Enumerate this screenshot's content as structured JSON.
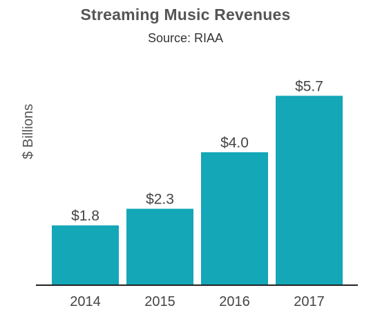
{
  "chart_data": {
    "type": "bar",
    "title": "Streaming Music Revenues",
    "subtitle": "Source: RIAA",
    "xlabel": "",
    "ylabel": "$ Billions",
    "categories": [
      "2014",
      "2015",
      "2016",
      "2017"
    ],
    "values": [
      1.8,
      2.3,
      4.0,
      5.7
    ],
    "data_labels": [
      "$1.8",
      "$2.3",
      "$4.0",
      "$5.7"
    ],
    "ylim": [
      0,
      6.5
    ],
    "grid": false,
    "bar_color": "#13a7b8",
    "axis_color": "#222222"
  }
}
